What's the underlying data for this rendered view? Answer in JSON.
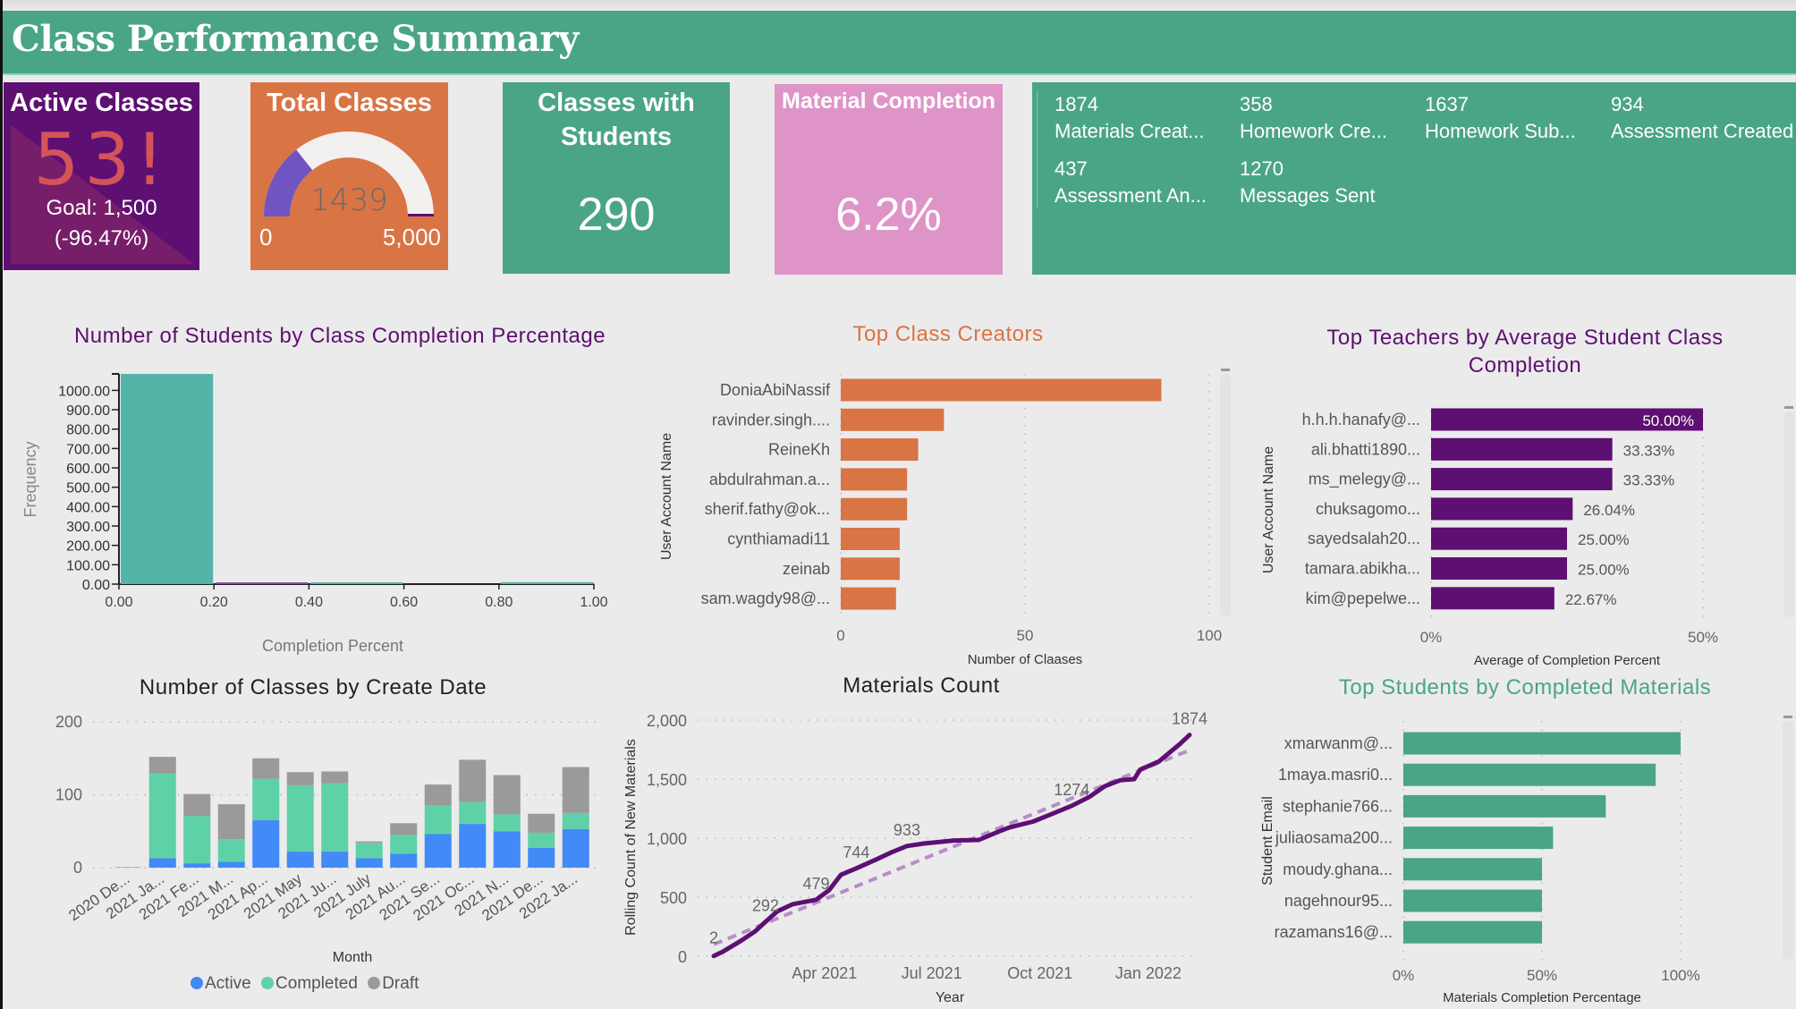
{
  "header": {
    "title": "Class Performance Summary"
  },
  "colors": {
    "green": "#4aa586",
    "purple": "#5e0f72",
    "orange": "#d97445",
    "pink": "#df94c8",
    "teal": "#52b5a8",
    "active_blue": "#418af7",
    "completed_green": "#5fd1a7",
    "draft_gray": "#9a9a9a",
    "gauge_fill": "#7055c0"
  },
  "cards": {
    "active_classes": {
      "title": "Active Classes",
      "value": "53",
      "alert_icon": "!",
      "goal": "Goal: 1,500",
      "delta": "(-96.47%)"
    },
    "total_classes": {
      "title": "Total Classes",
      "value": "1439",
      "value_number": 1439,
      "min": "0",
      "max": "5,000",
      "max_number": 5000
    },
    "classes_with_students": {
      "title": "Classes with Students",
      "value": "290"
    },
    "material_completion": {
      "title": "Material Completion",
      "value": "6.2%"
    }
  },
  "metrics": [
    {
      "value": "1874",
      "label": "Materials Creat..."
    },
    {
      "value": "358",
      "label": "Homework Cre..."
    },
    {
      "value": "1637",
      "label": "Homework Sub..."
    },
    {
      "value": "934",
      "label": "Assessment Created"
    },
    {
      "value": "437",
      "label": "Assessment An..."
    },
    {
      "value": "1270",
      "label": "Messages Sent"
    }
  ],
  "chart_data": [
    {
      "id": "histogram",
      "type": "bar",
      "title": "Number of Students by Class Completion Percentage",
      "xlabel": "Completion Percent",
      "ylabel": "Frequency",
      "bins": [
        {
          "from": 0.0,
          "to": 0.2,
          "value": 1085
        },
        {
          "from": 0.2,
          "to": 0.4,
          "value": 5
        },
        {
          "from": 0.4,
          "to": 0.6,
          "value": 3
        },
        {
          "from": 0.6,
          "to": 0.8,
          "value": 0
        },
        {
          "from": 0.8,
          "to": 1.0,
          "value": 10
        }
      ],
      "xticks": [
        "0.00",
        "0.20",
        "0.40",
        "0.60",
        "0.80",
        "1.00"
      ],
      "yticks": [
        "0.00",
        "100.00",
        "200.00",
        "300.00",
        "400.00",
        "500.00",
        "600.00",
        "700.00",
        "800.00",
        "900.00",
        "1000.00"
      ],
      "ylim": [
        0,
        1085
      ],
      "xlim": [
        0,
        1
      ]
    },
    {
      "id": "class_creators",
      "type": "bar",
      "orientation": "horizontal",
      "title": "Top Class Creators",
      "xlabel": "Number of Claases",
      "ylabel": "User Account Name",
      "categories": [
        "DoniaAbiNassif",
        "ravinder.singh....",
        "ReineKh",
        "abdulrahman.a...",
        "sherif.fathy@ok...",
        "cynthiamadi11",
        "zeinab",
        "sam.wagdy98@..."
      ],
      "values": [
        87,
        28,
        21,
        18,
        18,
        16,
        16,
        15
      ],
      "xticks": [
        "0",
        "50",
        "100"
      ],
      "xlim": [
        0,
        100
      ]
    },
    {
      "id": "top_teachers",
      "type": "bar",
      "orientation": "horizontal",
      "title": "Top Teachers by Average Student Class Completion",
      "xlabel": "Average of Completion Percent",
      "ylabel": "User Account Name",
      "categories": [
        "h.h.h.hanafy@...",
        "ali.bhatti1890...",
        "ms_melegy@...",
        "chuksagomo...",
        "sayedsalah20...",
        "tamara.abikha...",
        "kim@pepelwe..."
      ],
      "values": [
        50.0,
        33.33,
        33.33,
        26.04,
        25.0,
        25.0,
        22.67
      ],
      "labels": [
        "50.00%",
        "33.33%",
        "33.33%",
        "26.04%",
        "25.00%",
        "25.00%",
        "22.67%"
      ],
      "xticks": [
        "0%",
        "50%"
      ],
      "xlim": [
        0,
        50
      ]
    },
    {
      "id": "classes_by_date",
      "type": "bar",
      "stacked": true,
      "title": "Number of Classes by Create Date",
      "xlabel": "Month",
      "ylabel": "",
      "categories": [
        "2020 De...",
        "2021 Ja...",
        "2021 Fe...",
        "2021 M...",
        "2021 Ap...",
        "2021 May",
        "2021 Ju...",
        "2021 July",
        "2021 Au...",
        "2021 Se...",
        "2021 Oc...",
        "2021 N...",
        "2021 De...",
        "2022 Ja..."
      ],
      "series": [
        {
          "name": "Active",
          "color": "#418af7",
          "values": [
            0,
            13,
            6,
            8,
            65,
            22,
            22,
            13,
            19,
            46,
            60,
            50,
            27,
            53
          ]
        },
        {
          "name": "Completed",
          "color": "#5fd1a7",
          "values": [
            1,
            116,
            65,
            31,
            57,
            91,
            94,
            21,
            26,
            39,
            30,
            23,
            21,
            22
          ]
        },
        {
          "name": "Draft",
          "color": "#9a9a9a",
          "values": [
            0,
            23,
            30,
            48,
            28,
            18,
            16,
            2,
            16,
            29,
            58,
            54,
            26,
            63
          ]
        }
      ],
      "yticks": [
        "0",
        "100",
        "200"
      ],
      "ylim": [
        0,
        200
      ],
      "legend": "bottom"
    },
    {
      "id": "materials_count",
      "type": "line",
      "title": "Materials Count",
      "xlabel": "Year",
      "ylabel": "Rolling Count of New Materials",
      "x": [
        "2020-12-28",
        "2021-01-05",
        "2021-01-20",
        "2021-02-01",
        "2021-02-10",
        "2021-02-20",
        "2021-03-05",
        "2021-03-25",
        "2021-04-05",
        "2021-04-15",
        "2021-04-28",
        "2021-05-15",
        "2021-05-28",
        "2021-06-10",
        "2021-06-25",
        "2021-07-05",
        "2021-07-20",
        "2021-08-10",
        "2021-08-28",
        "2021-09-05",
        "2021-09-25",
        "2021-10-10",
        "2021-10-28",
        "2021-11-12",
        "2021-11-25",
        "2021-12-08",
        "2021-12-20",
        "2021-12-25",
        "2022-01-10",
        "2022-01-28",
        "2022-02-05"
      ],
      "values": [
        2,
        40,
        130,
        210,
        292,
        380,
        440,
        479,
        560,
        690,
        744,
        820,
        880,
        933,
        955,
        965,
        980,
        985,
        1060,
        1090,
        1140,
        1200,
        1274,
        1350,
        1440,
        1490,
        1500,
        1580,
        1650,
        1800,
        1874
      ],
      "point_labels": [
        {
          "x": "2020-12-28",
          "label": "2"
        },
        {
          "x": "2021-02-10",
          "label": "292"
        },
        {
          "x": "2021-03-25",
          "label": "479"
        },
        {
          "x": "2021-04-28",
          "label": "744"
        },
        {
          "x": "2021-06-10",
          "label": "933"
        },
        {
          "x": "2021-10-28",
          "label": "1274"
        },
        {
          "x": "2022-02-05",
          "label": "1874"
        }
      ],
      "trend": {
        "start": 100,
        "end": 1745
      },
      "xticks": [
        "Apr 2021",
        "Jul 2021",
        "Oct 2021",
        "Jan 2022"
      ],
      "yticks": [
        "0",
        "500",
        "1,000",
        "1,500",
        "2,000"
      ],
      "ylim": [
        0,
        2000
      ]
    },
    {
      "id": "top_students",
      "type": "bar",
      "orientation": "horizontal",
      "title": "Top Students by Completed Materials",
      "xlabel": "Materials Completion Percentage",
      "ylabel": "Student Email",
      "categories": [
        "xmarwanm@...",
        "1maya.masri0...",
        "stephanie766...",
        "juliaosama200...",
        "moudy.ghana...",
        "nagehnour95...",
        "razamans16@..."
      ],
      "values": [
        100,
        91,
        73,
        54,
        50,
        50,
        50
      ],
      "xticks": [
        "0%",
        "50%",
        "100%"
      ],
      "xlim": [
        0,
        100
      ]
    }
  ]
}
